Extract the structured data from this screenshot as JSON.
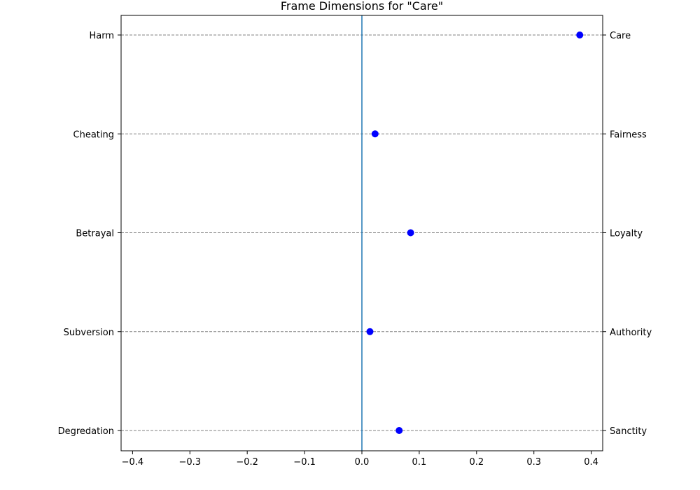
{
  "chart_data": {
    "type": "scatter",
    "title": "Frame Dimensions for \"Care\"",
    "xlabel": "",
    "ylabel": "",
    "xlim": [
      -0.42,
      0.42
    ],
    "x_ticks": [
      -0.4,
      -0.3,
      -0.2,
      -0.1,
      0.0,
      0.1,
      0.2,
      0.3,
      0.4
    ],
    "x_tick_labels": [
      "−0.4",
      "−0.3",
      "−0.2",
      "−0.1",
      "0.0",
      "0.1",
      "0.2",
      "0.3",
      "0.4"
    ],
    "left_labels": [
      "Harm",
      "Cheating",
      "Betrayal",
      "Subversion",
      "Degredation"
    ],
    "right_labels": [
      "Care",
      "Fairness",
      "Loyalty",
      "Authority",
      "Sanctity"
    ],
    "values": [
      0.38,
      0.023,
      0.085,
      0.014,
      0.065
    ],
    "reference_line_x": 0.0,
    "grid": "horizontal dashed",
    "legend": "none",
    "colors": {
      "points": "#0000ff",
      "reference_line": "#1f77b4",
      "grid": "#808080",
      "axes": "#000000"
    }
  }
}
